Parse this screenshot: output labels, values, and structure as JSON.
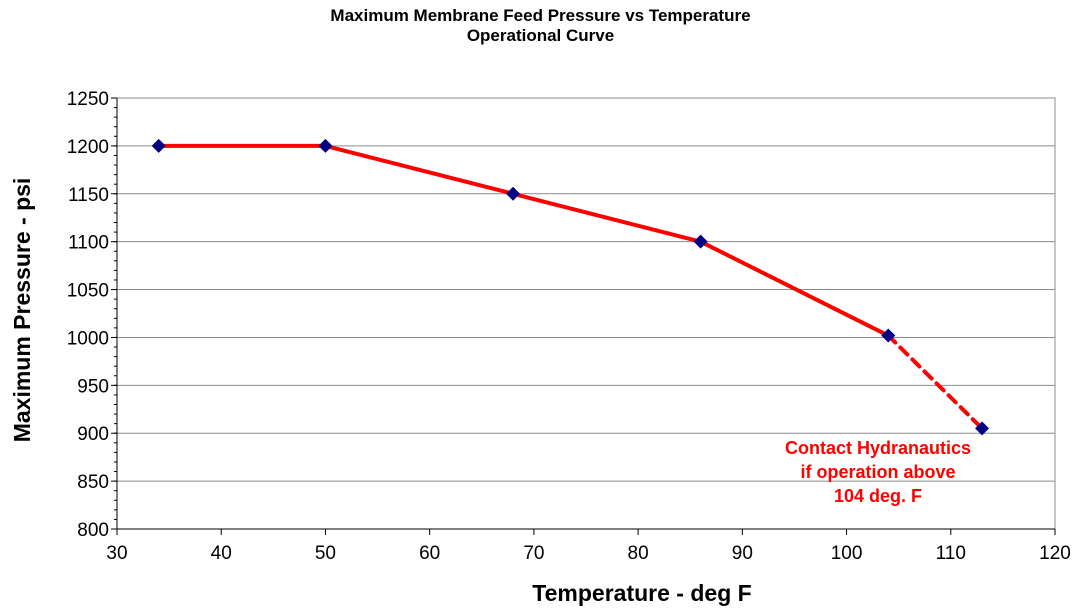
{
  "chart_data": {
    "type": "line",
    "title": "Maximum Membrane Feed Pressure vs Temperature",
    "subtitle": "Operational Curve",
    "xlabel": "Temperature  - deg F",
    "ylabel": "Maximum Pressure - psi",
    "xlim": [
      30,
      120
    ],
    "ylim": [
      800,
      1250
    ],
    "x_ticks": [
      30,
      40,
      50,
      60,
      70,
      80,
      90,
      100,
      110,
      120
    ],
    "y_ticks": [
      800,
      850,
      900,
      950,
      1000,
      1050,
      1100,
      1150,
      1200,
      1250
    ],
    "grid": "horizontal",
    "legend": "none",
    "series": [
      {
        "x": [
          34,
          50,
          68,
          86,
          104,
          113
        ],
        "y": [
          1200,
          1200,
          1150,
          1100,
          1002,
          905
        ],
        "line_color": "#ff0000",
        "marker_color": "#000080",
        "marker": "diamond",
        "dashed_from_x": 104
      }
    ],
    "annotation": {
      "lines": [
        "Contact Hydranautics",
        "if operation above",
        "104 deg. F"
      ],
      "color": "#ff0000"
    }
  }
}
